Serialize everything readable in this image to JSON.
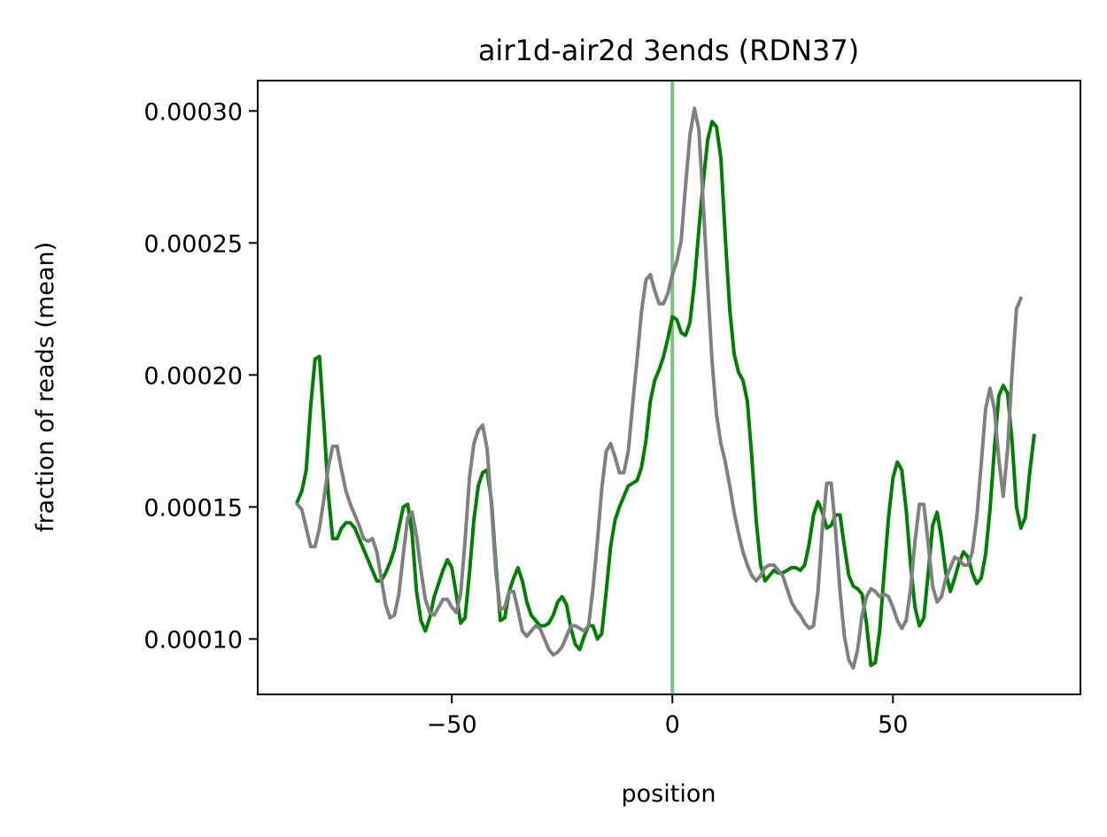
{
  "chart_data": {
    "type": "line",
    "title": "air1d-air2d 3ends (RDN37)",
    "xlabel": "position",
    "ylabel": "fraction of reads (mean)",
    "xlim": [
      -94,
      92.5
    ],
    "ylim": [
      7.9e-05,
      0.0003115
    ],
    "xticks": [
      -50,
      0,
      50
    ],
    "xtick_labels": [
      "−50",
      "0",
      "50"
    ],
    "yticks": [
      0.0001,
      0.00015,
      0.0002,
      0.00025,
      0.0003
    ],
    "ytick_labels": [
      "0.00010",
      "0.00015",
      "0.00020",
      "0.00025",
      "0.00030"
    ],
    "grid": false,
    "vline": {
      "x": 0,
      "color": "#7fbf7f"
    },
    "x_start": -85,
    "series": [
      {
        "color": "#008000",
        "values": [
          0.000152,
          0.000156,
          0.000164,
          0.000188,
          0.000206,
          0.000207,
          0.000182,
          0.000155,
          0.000138,
          0.000138,
          0.000142,
          0.000144,
          0.000144,
          0.000142,
          0.000138,
          0.000134,
          0.00013,
          0.000126,
          0.000122,
          0.000122,
          0.000125,
          0.000129,
          0.000134,
          0.000142,
          0.00015,
          0.000151,
          0.00014,
          0.000118,
          0.000107,
          0.000103,
          0.000108,
          0.000116,
          0.000121,
          0.000126,
          0.00013,
          0.000127,
          0.000117,
          0.000106,
          0.000108,
          0.000125,
          0.000145,
          0.000158,
          0.000163,
          0.000164,
          0.000152,
          0.000128,
          0.000107,
          0.000108,
          0.000118,
          0.000123,
          0.000127,
          0.000122,
          0.000114,
          0.000109,
          0.000107,
          0.000105,
          0.000105,
          0.000106,
          0.000109,
          0.000114,
          0.000116,
          0.000113,
          0.000104,
          9.8e-05,
          9.6e-05,
          0.000101,
          0.000105,
          0.000105,
          0.0001,
          0.000102,
          0.000118,
          0.000135,
          0.000145,
          0.00015,
          0.000154,
          0.000158,
          0.000159,
          0.00016,
          0.000165,
          0.000175,
          0.00019,
          0.000198,
          0.000202,
          0.000207,
          0.000214,
          0.000222,
          0.000221,
          0.000216,
          0.000215,
          0.00022,
          0.000235,
          0.000255,
          0.000273,
          0.000289,
          0.000296,
          0.000294,
          0.000282,
          0.000252,
          0.000225,
          0.000208,
          0.000201,
          0.000198,
          0.00019,
          0.000169,
          0.000145,
          0.000128,
          0.000122,
          0.000124,
          0.000126,
          0.000125,
          0.000125,
          0.000126,
          0.000127,
          0.000127,
          0.000126,
          0.000128,
          0.000136,
          0.000147,
          0.000152,
          0.000148,
          0.000142,
          0.000143,
          0.000147,
          0.000147,
          0.000135,
          0.000124,
          0.00012,
          0.000119,
          0.000117,
          0.000106,
          9e-05,
          9.1e-05,
          0.000103,
          0.000125,
          0.000146,
          0.000161,
          0.000167,
          0.000164,
          0.000149,
          0.000128,
          0.000112,
          0.000105,
          0.000108,
          0.000125,
          0.000143,
          0.000148,
          0.000138,
          0.000125,
          0.000118,
          0.000123,
          0.000129,
          0.000133,
          0.000131,
          0.000125,
          0.000121,
          0.000123,
          0.000132,
          0.000149,
          0.000172,
          0.000192,
          0.000196,
          0.000193,
          0.000175,
          0.00015,
          0.000142,
          0.000146,
          0.000163,
          0.000177
        ]
      },
      {
        "color": "#808080",
        "values": [
          0.000151,
          0.000149,
          0.000142,
          0.000135,
          0.000135,
          0.000142,
          0.000153,
          0.000165,
          0.000173,
          0.000173,
          0.000164,
          0.000156,
          0.000151,
          0.000147,
          0.000143,
          0.000138,
          0.000137,
          0.000138,
          0.000133,
          0.000123,
          0.000113,
          0.000108,
          0.000109,
          0.000117,
          0.000132,
          0.000146,
          0.000148,
          0.000139,
          0.000126,
          0.000115,
          0.00011,
          0.000109,
          0.000112,
          0.000115,
          0.000115,
          0.000112,
          0.00011,
          0.000117,
          0.000137,
          0.000161,
          0.000174,
          0.000179,
          0.000181,
          0.000172,
          0.00015,
          0.000125,
          0.000111,
          0.000112,
          0.000118,
          0.000118,
          0.000111,
          0.000103,
          0.000101,
          0.000103,
          0.000105,
          0.000104,
          0.0001,
          9.6e-05,
          9.4e-05,
          9.5e-05,
          9.7e-05,
          0.000101,
          0.000105,
          0.000105,
          0.000104,
          0.000103,
          0.000105,
          0.000119,
          0.000137,
          0.000157,
          0.000171,
          0.000174,
          0.000169,
          0.000163,
          0.000163,
          0.000171,
          0.000189,
          0.000206,
          0.000224,
          0.000236,
          0.000238,
          0.000232,
          0.000227,
          0.000227,
          0.000231,
          0.000238,
          0.000243,
          0.000251,
          0.000272,
          0.000291,
          0.000301,
          0.000293,
          0.000265,
          0.000234,
          0.000205,
          0.000185,
          0.000174,
          0.000167,
          0.000158,
          0.000148,
          0.00014,
          0.000133,
          0.000128,
          0.000124,
          0.000122,
          0.000124,
          0.000127,
          0.000128,
          0.000128,
          0.000126,
          0.000124,
          0.000119,
          0.000114,
          0.000111,
          0.000109,
          0.000106,
          0.000104,
          0.000105,
          0.000118,
          0.000142,
          0.000159,
          0.000159,
          0.000141,
          0.000118,
          0.000101,
          9.2e-05,
          8.9e-05,
          9.6e-05,
          0.000109,
          0.000116,
          0.000119,
          0.000118,
          0.000116,
          0.000117,
          0.000116,
          0.000112,
          0.000107,
          0.000104,
          0.000107,
          0.000119,
          0.000137,
          0.000151,
          0.000151,
          0.000136,
          0.00012,
          0.000114,
          0.000116,
          0.000123,
          0.000127,
          0.000131,
          0.00013,
          0.000128,
          0.000128,
          0.000133,
          0.000146,
          0.000166,
          0.000187,
          0.000195,
          0.000187,
          0.000168,
          0.000154,
          0.000172,
          0.000201,
          0.000225,
          0.000229
        ]
      }
    ]
  }
}
